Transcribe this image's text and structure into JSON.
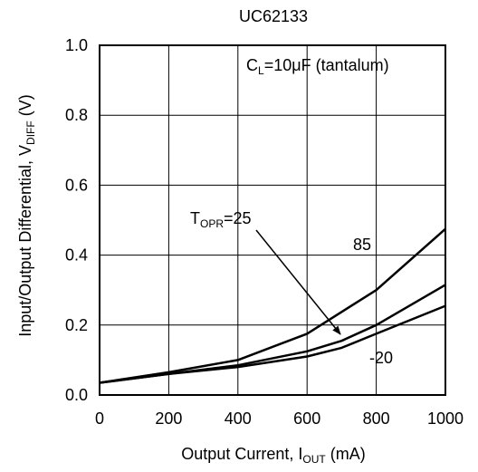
{
  "chart_data": {
    "type": "line",
    "title": "UC62133",
    "xlabel": {
      "main": "Output Current, I",
      "sub": "OUT",
      "unit": " (mA)"
    },
    "ylabel": {
      "main": "Input/Output Differential, V",
      "sub": "DIFF",
      "unit": " (V)"
    },
    "xlim": [
      0,
      1000
    ],
    "ylim": [
      0,
      1.0
    ],
    "x_ticks": [
      "0",
      "200",
      "400",
      "600",
      "800",
      "1000"
    ],
    "y_ticks": [
      "0.0",
      "0.2",
      "0.4",
      "0.6",
      "0.8",
      "1.0"
    ],
    "grid": true,
    "condition": {
      "main": "C",
      "sub": "L",
      "rest": "=10μF (tantalum)"
    },
    "temperature_label": {
      "main": "T",
      "sub": "OPR",
      "rest": "=25"
    },
    "series": [
      {
        "name": "85",
        "x": [
          0,
          200,
          400,
          600,
          800,
          1000
        ],
        "y": [
          0.035,
          0.065,
          0.1,
          0.175,
          0.3,
          0.475
        ]
      },
      {
        "name": "25",
        "x": [
          0,
          200,
          400,
          600,
          700,
          800,
          1000
        ],
        "y": [
          0.035,
          0.06,
          0.085,
          0.125,
          0.155,
          0.2,
          0.315
        ]
      },
      {
        "name": "-20",
        "x": [
          0,
          200,
          400,
          600,
          700,
          800,
          1000
        ],
        "y": [
          0.035,
          0.06,
          0.08,
          0.11,
          0.135,
          0.175,
          0.255
        ]
      }
    ],
    "series_labels": [
      "85",
      "-20"
    ]
  }
}
